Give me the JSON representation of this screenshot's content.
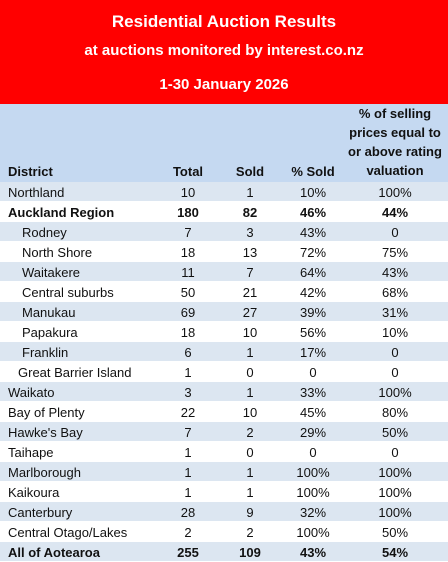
{
  "banner": {
    "title": "Residential Auction Results",
    "subtitle": "at auctions monitored by interest.co.nz",
    "period": "1-30 January 2026"
  },
  "header": {
    "district": "District",
    "total": "Total",
    "sold": "Sold",
    "pct_sold": "% Sold",
    "valuation_lines": [
      "% of selling",
      "prices equal to",
      "or above rating",
      "valuation"
    ]
  },
  "rows": [
    {
      "district": "Northland",
      "total": "10",
      "sold": "1",
      "pct_sold": "10%",
      "valuation": "100%"
    },
    {
      "district": "Auckland Region",
      "total": "180",
      "sold": "82",
      "pct_sold": "46%",
      "valuation": "44%"
    },
    {
      "district": "Rodney",
      "total": "7",
      "sold": "3",
      "pct_sold": "43%",
      "valuation": "0"
    },
    {
      "district": "North Shore",
      "total": "18",
      "sold": "13",
      "pct_sold": "72%",
      "valuation": "75%"
    },
    {
      "district": "Waitakere",
      "total": "11",
      "sold": "7",
      "pct_sold": "64%",
      "valuation": "43%"
    },
    {
      "district": "Central suburbs",
      "total": "50",
      "sold": "21",
      "pct_sold": "42%",
      "valuation": "68%"
    },
    {
      "district": "Manukau",
      "total": "69",
      "sold": "27",
      "pct_sold": "39%",
      "valuation": "31%"
    },
    {
      "district": "Papakura",
      "total": "18",
      "sold": "10",
      "pct_sold": "56%",
      "valuation": "10%"
    },
    {
      "district": "Franklin",
      "total": "6",
      "sold": "1",
      "pct_sold": "17%",
      "valuation": "0"
    },
    {
      "district": "Great Barrier Island",
      "total": "1",
      "sold": "0",
      "pct_sold": "0",
      "valuation": "0"
    },
    {
      "district": "Waikato",
      "total": "3",
      "sold": "1",
      "pct_sold": "33%",
      "valuation": "100%"
    },
    {
      "district": "Bay of Plenty",
      "total": "22",
      "sold": "10",
      "pct_sold": "45%",
      "valuation": "80%"
    },
    {
      "district": "Hawke's Bay",
      "total": "7",
      "sold": "2",
      "pct_sold": "29%",
      "valuation": "50%"
    },
    {
      "district": "Taihape",
      "total": "1",
      "sold": "0",
      "pct_sold": "0",
      "valuation": "0"
    },
    {
      "district": "Marlborough",
      "total": "1",
      "sold": "1",
      "pct_sold": "100%",
      "valuation": "100%"
    },
    {
      "district": "Kaikoura",
      "total": "1",
      "sold": "1",
      "pct_sold": "100%",
      "valuation": "100%"
    },
    {
      "district": "Canterbury",
      "total": "28",
      "sold": "9",
      "pct_sold": "32%",
      "valuation": "100%"
    },
    {
      "district": "Central Otago/Lakes",
      "total": "2",
      "sold": "2",
      "pct_sold": "100%",
      "valuation": "50%"
    },
    {
      "district": "All of Aotearoa",
      "total": "255",
      "sold": "109",
      "pct_sold": "43%",
      "valuation": "54%"
    }
  ]
}
